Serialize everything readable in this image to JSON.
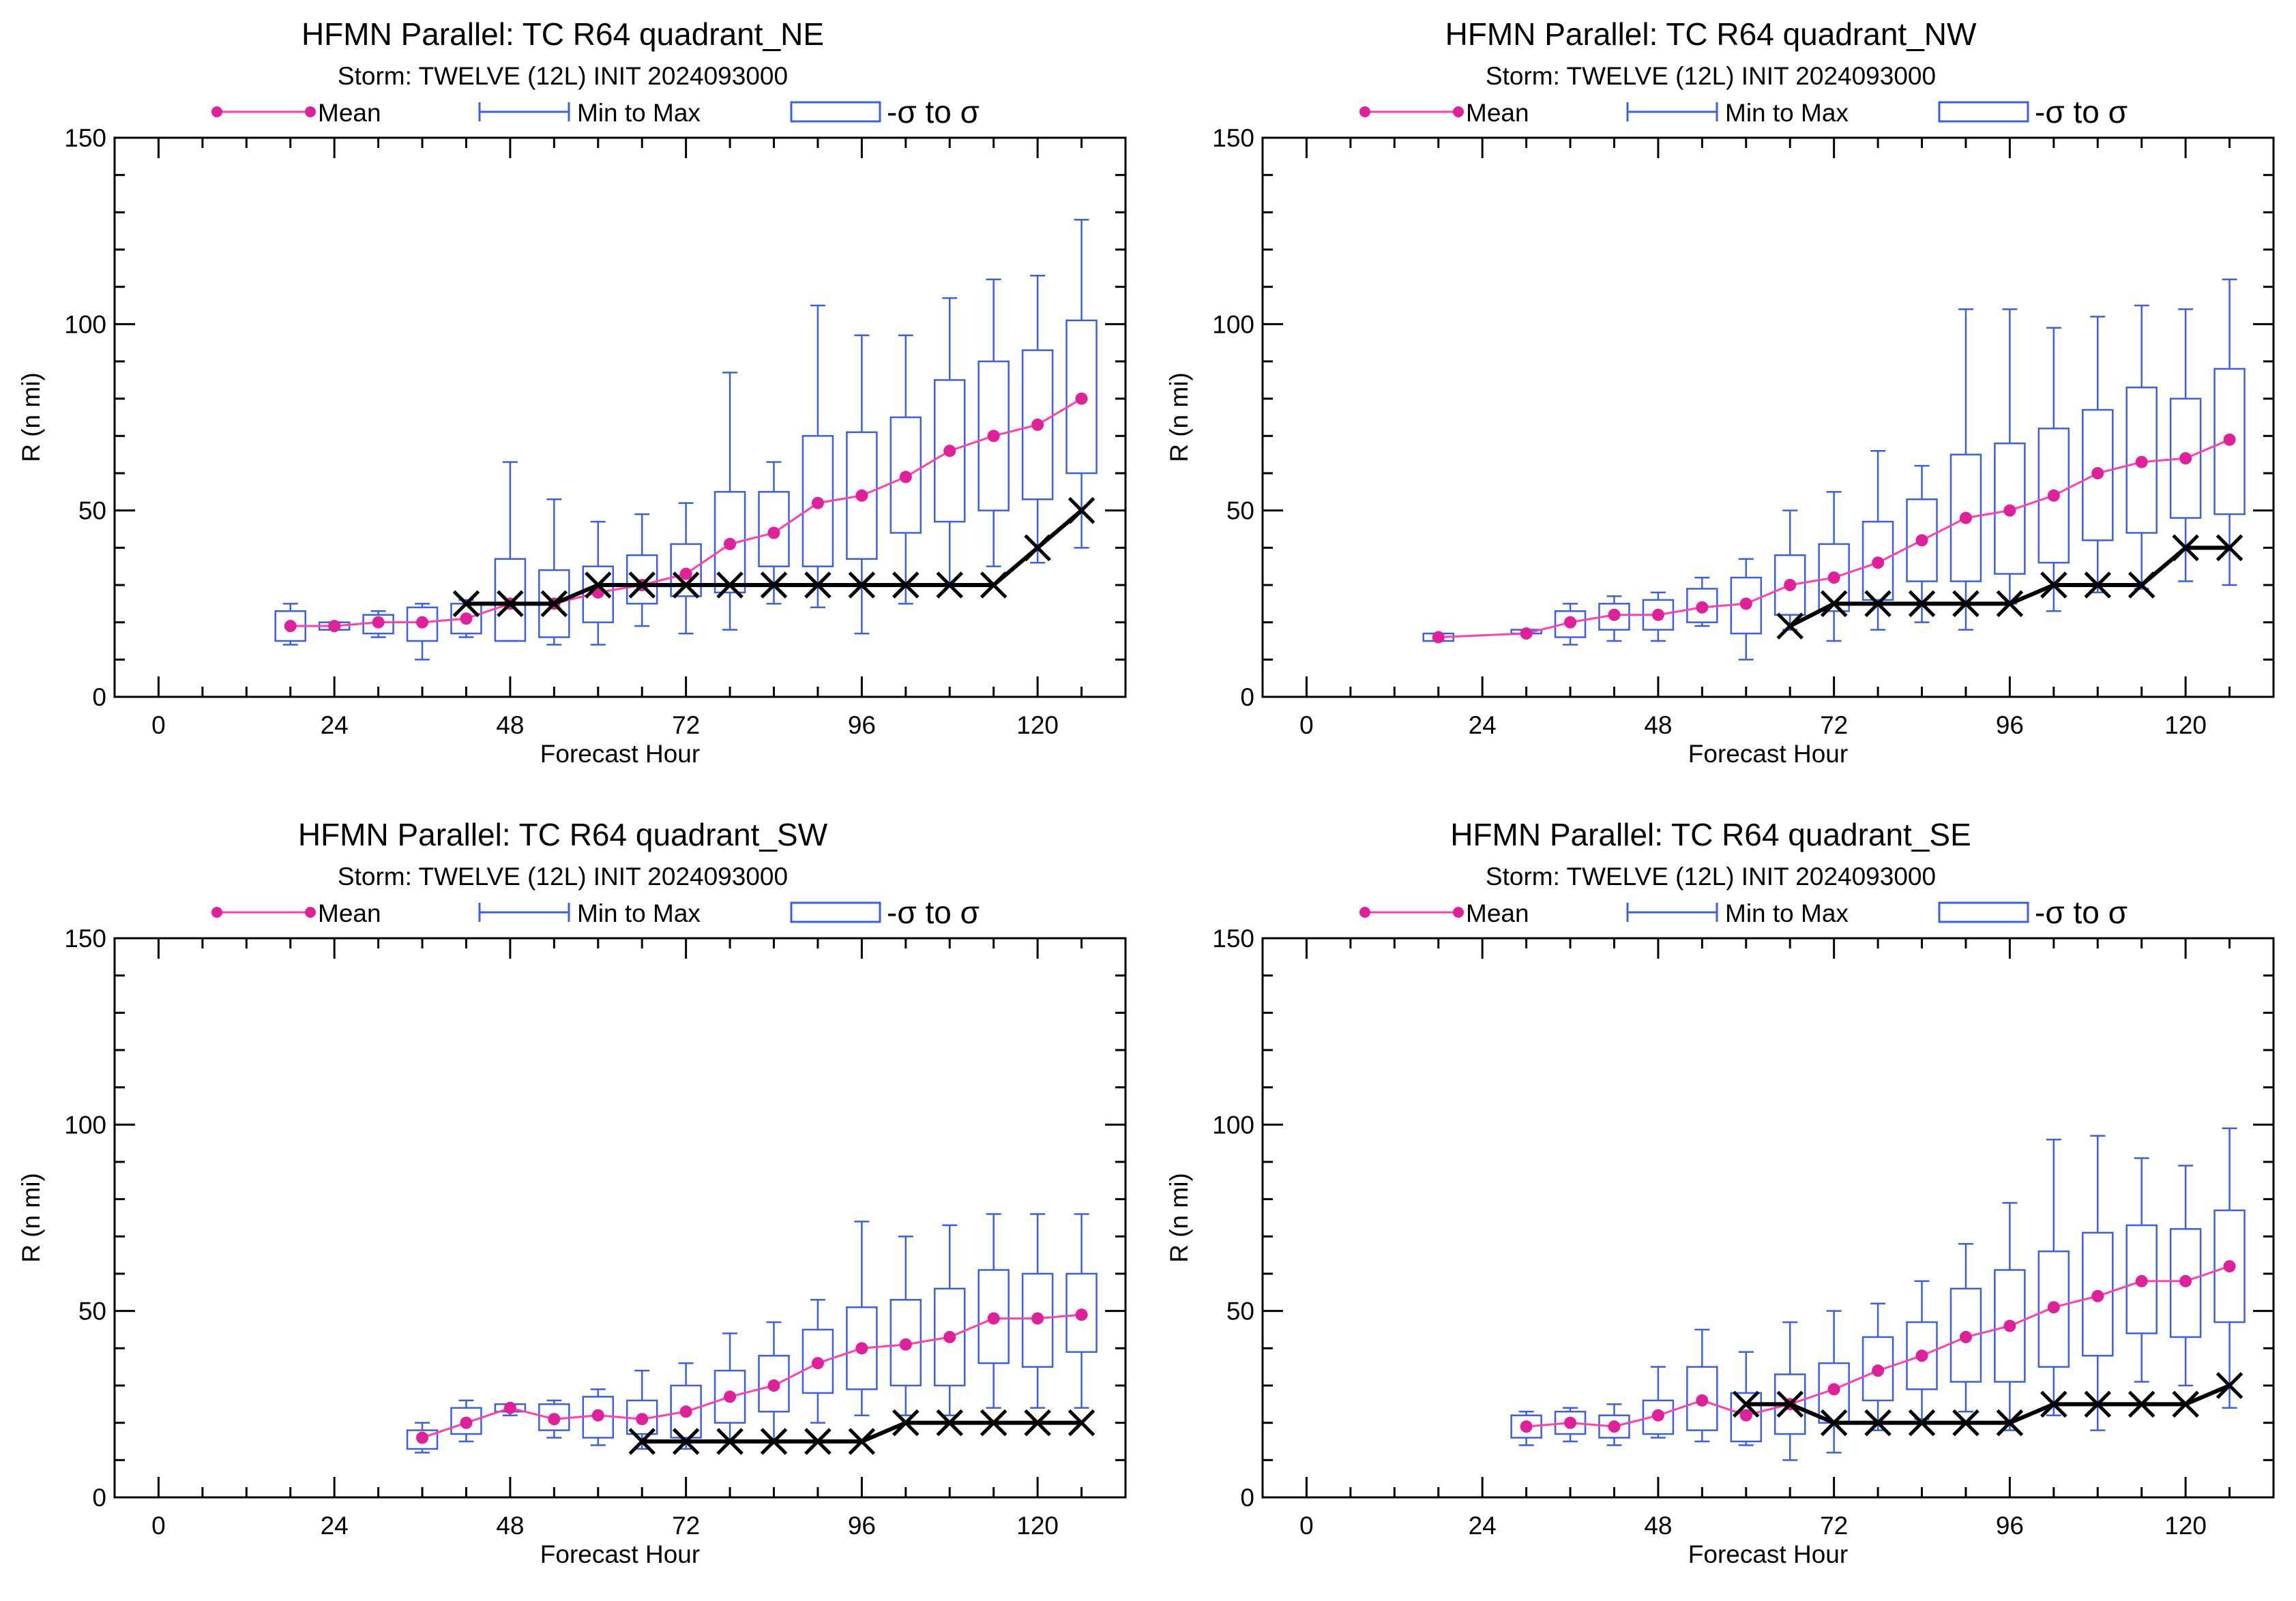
{
  "legend": {
    "mean_label": "Mean",
    "minmax_label": "Min to Max",
    "sigma_label": "-σ to σ"
  },
  "colors": {
    "mean": "#e0209a",
    "mean_line": "#ff3fb0",
    "box": "#3a5fe0",
    "best_track": "#000000"
  },
  "chart_data": [
    {
      "type": "box",
      "title": "HFMN Parallel: TC  R64 quadrant_NE",
      "subtitle": "Storm: TWELVE (12L) INIT 2024093000",
      "xlabel": "Forecast Hour",
      "ylabel": "R (n mi)",
      "xlim": [
        -6,
        132
      ],
      "ylim": [
        0,
        150
      ],
      "xticks": [
        0,
        24,
        48,
        72,
        96,
        120
      ],
      "yticks": [
        0,
        50,
        100,
        150
      ],
      "boxes": [
        {
          "x": 18,
          "min": 14,
          "q1": 15,
          "mean": 19,
          "q3": 23,
          "max": 25
        },
        {
          "x": 24,
          "min": 18,
          "q1": 18,
          "mean": 19,
          "q3": 20,
          "max": 20
        },
        {
          "x": 30,
          "min": 16,
          "q1": 17,
          "mean": 20,
          "q3": 22,
          "max": 23
        },
        {
          "x": 36,
          "min": 10,
          "q1": 15,
          "mean": 20,
          "q3": 24,
          "max": 25
        },
        {
          "x": 42,
          "min": 16,
          "q1": 17,
          "mean": 21,
          "q3": 25,
          "max": 26
        },
        {
          "x": 48,
          "min": 15,
          "q1": 15,
          "mean": 25,
          "q3": 37,
          "max": 63
        },
        {
          "x": 54,
          "min": 14,
          "q1": 16,
          "mean": 25,
          "q3": 34,
          "max": 53
        },
        {
          "x": 60,
          "min": 14,
          "q1": 20,
          "mean": 28,
          "q3": 35,
          "max": 47
        },
        {
          "x": 66,
          "min": 19,
          "q1": 25,
          "mean": 30,
          "q3": 38,
          "max": 49
        },
        {
          "x": 72,
          "min": 17,
          "q1": 27,
          "mean": 33,
          "q3": 41,
          "max": 52
        },
        {
          "x": 78,
          "min": 18,
          "q1": 28,
          "mean": 41,
          "q3": 55,
          "max": 87
        },
        {
          "x": 84,
          "min": 25,
          "q1": 35,
          "mean": 44,
          "q3": 55,
          "max": 63
        },
        {
          "x": 90,
          "min": 24,
          "q1": 35,
          "mean": 52,
          "q3": 70,
          "max": 105
        },
        {
          "x": 96,
          "min": 17,
          "q1": 37,
          "mean": 54,
          "q3": 71,
          "max": 97
        },
        {
          "x": 102,
          "min": 25,
          "q1": 44,
          "mean": 59,
          "q3": 75,
          "max": 97
        },
        {
          "x": 108,
          "min": 30,
          "q1": 47,
          "mean": 66,
          "q3": 85,
          "max": 107
        },
        {
          "x": 114,
          "min": 35,
          "q1": 50,
          "mean": 70,
          "q3": 90,
          "max": 112
        },
        {
          "x": 120,
          "min": 36,
          "q1": 53,
          "mean": 73,
          "q3": 93,
          "max": 113
        },
        {
          "x": 126,
          "min": 40,
          "q1": 60,
          "mean": 80,
          "q3": 101,
          "max": 128
        }
      ],
      "best_track": [
        {
          "x": 42,
          "y": 25
        },
        {
          "x": 48,
          "y": 25
        },
        {
          "x": 54,
          "y": 25
        },
        {
          "x": 60,
          "y": 30
        },
        {
          "x": 66,
          "y": 30
        },
        {
          "x": 72,
          "y": 30
        },
        {
          "x": 78,
          "y": 30
        },
        {
          "x": 84,
          "y": 30
        },
        {
          "x": 90,
          "y": 30
        },
        {
          "x": 96,
          "y": 30
        },
        {
          "x": 102,
          "y": 30
        },
        {
          "x": 108,
          "y": 30
        },
        {
          "x": 114,
          "y": 30
        },
        {
          "x": 120,
          "y": 40
        },
        {
          "x": 126,
          "y": 50
        }
      ]
    },
    {
      "type": "box",
      "title": "HFMN Parallel: TC  R64 quadrant_NW",
      "subtitle": "Storm: TWELVE (12L) INIT 2024093000",
      "xlabel": "Forecast Hour",
      "ylabel": "R (n mi)",
      "xlim": [
        -6,
        132
      ],
      "ylim": [
        0,
        150
      ],
      "xticks": [
        0,
        24,
        48,
        72,
        96,
        120
      ],
      "yticks": [
        0,
        50,
        100,
        150
      ],
      "boxes": [
        {
          "x": 18,
          "min": 15,
          "q1": 15,
          "mean": 16,
          "q3": 17,
          "max": 17
        },
        {
          "x": 30,
          "min": 17,
          "q1": 17,
          "mean": 17,
          "q3": 18,
          "max": 18
        },
        {
          "x": 36,
          "min": 14,
          "q1": 16,
          "mean": 20,
          "q3": 23,
          "max": 25
        },
        {
          "x": 42,
          "min": 15,
          "q1": 18,
          "mean": 22,
          "q3": 25,
          "max": 27
        },
        {
          "x": 48,
          "min": 15,
          "q1": 18,
          "mean": 22,
          "q3": 26,
          "max": 28
        },
        {
          "x": 54,
          "min": 19,
          "q1": 20,
          "mean": 24,
          "q3": 29,
          "max": 32
        },
        {
          "x": 60,
          "min": 10,
          "q1": 17,
          "mean": 25,
          "q3": 32,
          "max": 37
        },
        {
          "x": 66,
          "min": 18,
          "q1": 22,
          "mean": 30,
          "q3": 38,
          "max": 50
        },
        {
          "x": 72,
          "min": 15,
          "q1": 23,
          "mean": 32,
          "q3": 41,
          "max": 55
        },
        {
          "x": 78,
          "min": 18,
          "q1": 26,
          "mean": 36,
          "q3": 47,
          "max": 66
        },
        {
          "x": 84,
          "min": 20,
          "q1": 31,
          "mean": 42,
          "q3": 53,
          "max": 62
        },
        {
          "x": 90,
          "min": 18,
          "q1": 31,
          "mean": 48,
          "q3": 65,
          "max": 104
        },
        {
          "x": 96,
          "min": 25,
          "q1": 33,
          "mean": 50,
          "q3": 68,
          "max": 104
        },
        {
          "x": 102,
          "min": 23,
          "q1": 36,
          "mean": 54,
          "q3": 72,
          "max": 99
        },
        {
          "x": 108,
          "min": 28,
          "q1": 42,
          "mean": 60,
          "q3": 77,
          "max": 102
        },
        {
          "x": 114,
          "min": 29,
          "q1": 44,
          "mean": 63,
          "q3": 83,
          "max": 105
        },
        {
          "x": 120,
          "min": 31,
          "q1": 48,
          "mean": 64,
          "q3": 80,
          "max": 104
        },
        {
          "x": 126,
          "min": 30,
          "q1": 49,
          "mean": 69,
          "q3": 88,
          "max": 112
        }
      ],
      "best_track": [
        {
          "x": 66,
          "y": 19
        },
        {
          "x": 72,
          "y": 25
        },
        {
          "x": 78,
          "y": 25
        },
        {
          "x": 84,
          "y": 25
        },
        {
          "x": 90,
          "y": 25
        },
        {
          "x": 96,
          "y": 25
        },
        {
          "x": 102,
          "y": 30
        },
        {
          "x": 108,
          "y": 30
        },
        {
          "x": 114,
          "y": 30
        },
        {
          "x": 120,
          "y": 40
        },
        {
          "x": 126,
          "y": 40
        }
      ]
    },
    {
      "type": "box",
      "title": "HFMN Parallel: TC  R64 quadrant_SW",
      "subtitle": "Storm: TWELVE (12L) INIT 2024093000",
      "xlabel": "Forecast Hour",
      "ylabel": "R (n mi)",
      "xlim": [
        -6,
        132
      ],
      "ylim": [
        0,
        150
      ],
      "xticks": [
        0,
        24,
        48,
        72,
        96,
        120
      ],
      "yticks": [
        0,
        50,
        100,
        150
      ],
      "boxes": [
        {
          "x": 36,
          "min": 12,
          "q1": 13,
          "mean": 16,
          "q3": 18,
          "max": 20
        },
        {
          "x": 42,
          "min": 15,
          "q1": 17,
          "mean": 20,
          "q3": 24,
          "max": 26
        },
        {
          "x": 48,
          "min": 22,
          "q1": 23,
          "mean": 24,
          "q3": 25,
          "max": 25
        },
        {
          "x": 54,
          "min": 16,
          "q1": 18,
          "mean": 21,
          "q3": 25,
          "max": 26
        },
        {
          "x": 60,
          "min": 14,
          "q1": 16,
          "mean": 22,
          "q3": 27,
          "max": 29
        },
        {
          "x": 66,
          "min": 13,
          "q1": 17,
          "mean": 21,
          "q3": 26,
          "max": 34
        },
        {
          "x": 72,
          "min": 13,
          "q1": 16,
          "mean": 23,
          "q3": 30,
          "max": 36
        },
        {
          "x": 78,
          "min": 15,
          "q1": 20,
          "mean": 27,
          "q3": 34,
          "max": 44
        },
        {
          "x": 84,
          "min": 15,
          "q1": 23,
          "mean": 30,
          "q3": 38,
          "max": 47
        },
        {
          "x": 90,
          "min": 20,
          "q1": 28,
          "mean": 36,
          "q3": 45,
          "max": 53
        },
        {
          "x": 96,
          "min": 22,
          "q1": 29,
          "mean": 40,
          "q3": 51,
          "max": 74
        },
        {
          "x": 102,
          "min": 22,
          "q1": 30,
          "mean": 41,
          "q3": 53,
          "max": 70
        },
        {
          "x": 108,
          "min": 22,
          "q1": 30,
          "mean": 43,
          "q3": 56,
          "max": 73
        },
        {
          "x": 114,
          "min": 24,
          "q1": 36,
          "mean": 48,
          "q3": 61,
          "max": 76
        },
        {
          "x": 120,
          "min": 24,
          "q1": 35,
          "mean": 48,
          "q3": 60,
          "max": 76
        },
        {
          "x": 126,
          "min": 24,
          "q1": 39,
          "mean": 49,
          "q3": 60,
          "max": 76
        }
      ],
      "best_track": [
        {
          "x": 66,
          "y": 15
        },
        {
          "x": 72,
          "y": 15
        },
        {
          "x": 78,
          "y": 15
        },
        {
          "x": 84,
          "y": 15
        },
        {
          "x": 90,
          "y": 15
        },
        {
          "x": 96,
          "y": 15
        },
        {
          "x": 102,
          "y": 20
        },
        {
          "x": 108,
          "y": 20
        },
        {
          "x": 114,
          "y": 20
        },
        {
          "x": 120,
          "y": 20
        },
        {
          "x": 126,
          "y": 20
        }
      ]
    },
    {
      "type": "box",
      "title": "HFMN Parallel: TC  R64 quadrant_SE",
      "subtitle": "Storm: TWELVE (12L) INIT 2024093000",
      "xlabel": "Forecast Hour",
      "ylabel": "R (n mi)",
      "xlim": [
        -6,
        132
      ],
      "ylim": [
        0,
        150
      ],
      "xticks": [
        0,
        24,
        48,
        72,
        96,
        120
      ],
      "yticks": [
        0,
        50,
        100,
        150
      ],
      "boxes": [
        {
          "x": 30,
          "min": 14,
          "q1": 16,
          "mean": 19,
          "q3": 22,
          "max": 23
        },
        {
          "x": 36,
          "min": 15,
          "q1": 17,
          "mean": 20,
          "q3": 23,
          "max": 24
        },
        {
          "x": 42,
          "min": 14,
          "q1": 16,
          "mean": 19,
          "q3": 22,
          "max": 25
        },
        {
          "x": 48,
          "min": 16,
          "q1": 17,
          "mean": 22,
          "q3": 26,
          "max": 35
        },
        {
          "x": 54,
          "min": 15,
          "q1": 18,
          "mean": 26,
          "q3": 35,
          "max": 45
        },
        {
          "x": 60,
          "min": 14,
          "q1": 15,
          "mean": 22,
          "q3": 28,
          "max": 39
        },
        {
          "x": 66,
          "min": 10,
          "q1": 17,
          "mean": 25,
          "q3": 33,
          "max": 47
        },
        {
          "x": 72,
          "min": 12,
          "q1": 20,
          "mean": 29,
          "q3": 36,
          "max": 50
        },
        {
          "x": 78,
          "min": 18,
          "q1": 26,
          "mean": 34,
          "q3": 43,
          "max": 52
        },
        {
          "x": 84,
          "min": 21,
          "q1": 29,
          "mean": 38,
          "q3": 47,
          "max": 58
        },
        {
          "x": 90,
          "min": 23,
          "q1": 31,
          "mean": 43,
          "q3": 56,
          "max": 68
        },
        {
          "x": 96,
          "min": 18,
          "q1": 31,
          "mean": 46,
          "q3": 61,
          "max": 79
        },
        {
          "x": 102,
          "min": 22,
          "q1": 35,
          "mean": 51,
          "q3": 66,
          "max": 96
        },
        {
          "x": 108,
          "min": 18,
          "q1": 38,
          "mean": 54,
          "q3": 71,
          "max": 97
        },
        {
          "x": 114,
          "min": 31,
          "q1": 44,
          "mean": 58,
          "q3": 73,
          "max": 91
        },
        {
          "x": 120,
          "min": 30,
          "q1": 43,
          "mean": 58,
          "q3": 72,
          "max": 89
        },
        {
          "x": 126,
          "min": 24,
          "q1": 47,
          "mean": 62,
          "q3": 77,
          "max": 99
        }
      ],
      "best_track": [
        {
          "x": 60,
          "y": 25
        },
        {
          "x": 66,
          "y": 25
        },
        {
          "x": 72,
          "y": 20
        },
        {
          "x": 78,
          "y": 20
        },
        {
          "x": 84,
          "y": 20
        },
        {
          "x": 90,
          "y": 20
        },
        {
          "x": 96,
          "y": 20
        },
        {
          "x": 102,
          "y": 25
        },
        {
          "x": 108,
          "y": 25
        },
        {
          "x": 114,
          "y": 25
        },
        {
          "x": 120,
          "y": 25
        },
        {
          "x": 126,
          "y": 30
        }
      ]
    }
  ]
}
